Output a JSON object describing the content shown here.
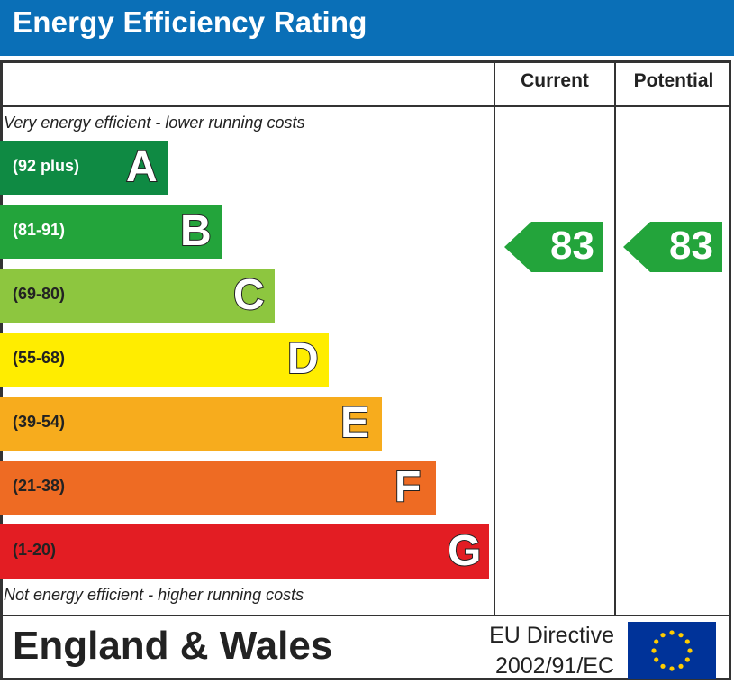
{
  "header": {
    "title": "Energy Efficiency Rating"
  },
  "columns": {
    "current": "Current",
    "potential": "Potential"
  },
  "captions": {
    "top": "Very energy efficient - lower running costs",
    "bottom": "Not energy efficient - higher running costs"
  },
  "footer": {
    "region": "England & Wales",
    "directive_line1": "EU Directive",
    "directive_line2": "2002/91/EC"
  },
  "chart_data": {
    "type": "bar",
    "title": "Energy Efficiency Rating",
    "categories": [
      "A",
      "B",
      "C",
      "D",
      "E",
      "F",
      "G"
    ],
    "bands": [
      {
        "letter": "A",
        "range": "(92 plus)",
        "color": "#0f8a43",
        "range_color": "#ffffff"
      },
      {
        "letter": "B",
        "range": "(81-91)",
        "color": "#23a43b",
        "range_color": "#ffffff"
      },
      {
        "letter": "C",
        "range": "(69-80)",
        "color": "#8dc63f",
        "range_color": "#222222"
      },
      {
        "letter": "D",
        "range": "(55-68)",
        "color": "#ffed00",
        "range_color": "#222222"
      },
      {
        "letter": "E",
        "range": "(39-54)",
        "color": "#f7ac1d",
        "range_color": "#222222"
      },
      {
        "letter": "F",
        "range": "(21-38)",
        "color": "#ee6b23",
        "range_color": "#222222"
      },
      {
        "letter": "G",
        "range": "(1-20)",
        "color": "#e31d23",
        "range_color": "#222222"
      }
    ],
    "current": {
      "value": 83,
      "band": "B",
      "color": "#23a43b"
    },
    "potential": {
      "value": 83,
      "band": "B",
      "color": "#23a43b"
    }
  }
}
